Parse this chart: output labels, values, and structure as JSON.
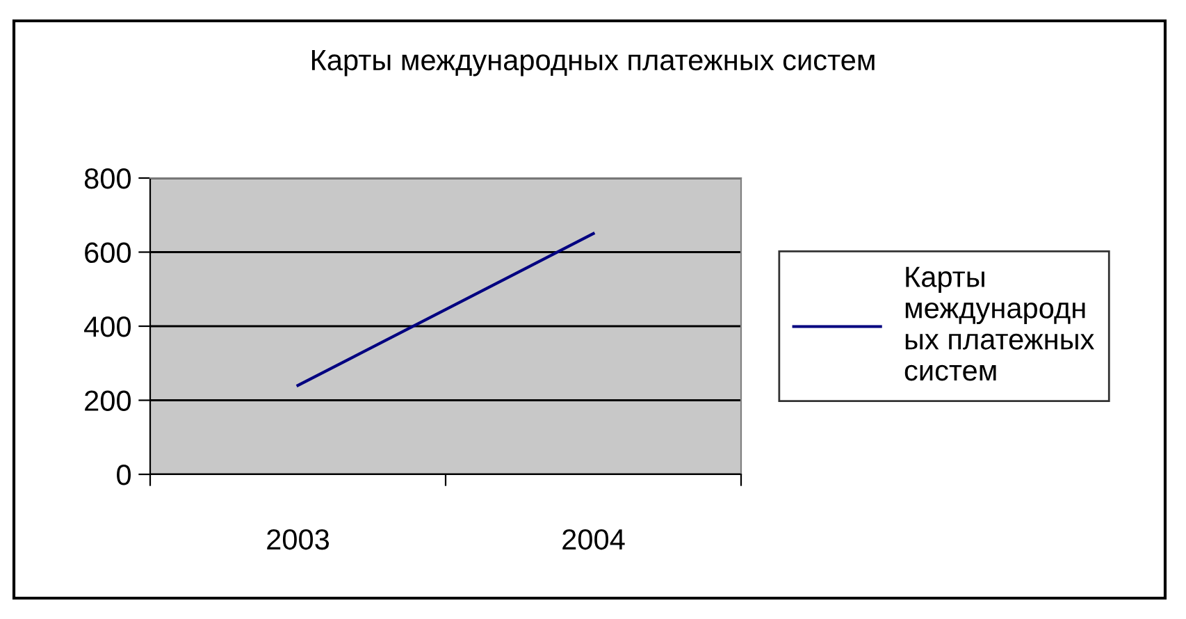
{
  "chart_data": {
    "type": "line",
    "title": "Карты международных платежных систем",
    "categories": [
      "2003",
      "2004"
    ],
    "series": [
      {
        "name": "Карты международных платежных систем",
        "color": "#000080",
        "values": [
          240,
          650
        ]
      }
    ],
    "ylim": [
      0,
      800
    ],
    "yticks": [
      0,
      200,
      400,
      600,
      800
    ],
    "grid": "y",
    "legend": "right",
    "marker": "none",
    "line_style": "solid"
  }
}
